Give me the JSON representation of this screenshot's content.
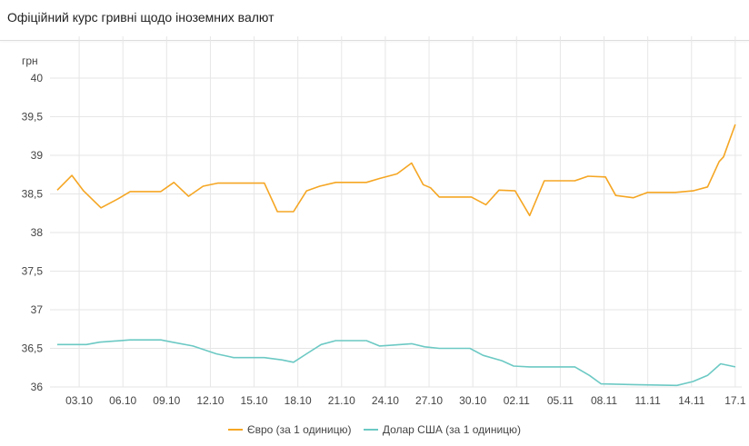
{
  "header": {
    "title": "Офіційний курс гривні щодо іноземних валют"
  },
  "chart_data": {
    "type": "line",
    "title": "Офіційний курс гривні щодо іноземних валют",
    "ylabel": "грн",
    "xlabel": "",
    "ylim": [
      36,
      40
    ],
    "yticks": [
      "40",
      "39,5",
      "39",
      "38,5",
      "38",
      "37,5",
      "37",
      "36,5",
      "36"
    ],
    "ytick_values": [
      40,
      39.5,
      39,
      38.5,
      38,
      37.5,
      37,
      36.5,
      36
    ],
    "x_unit": "days since 01.10",
    "xlim": [
      0,
      47.4
    ],
    "xticks": [
      "03.10",
      "06.10",
      "09.10",
      "12.10",
      "15.10",
      "18.10",
      "21.10",
      "24.10",
      "27.10",
      "30.10",
      "02.11",
      "05.11",
      "08.11",
      "11.11",
      "14.11",
      "17.1"
    ],
    "xtick_values": [
      2,
      5,
      8,
      11,
      14,
      17,
      20,
      23,
      26,
      29,
      32,
      35,
      38,
      41,
      44,
      47
    ],
    "grid": true,
    "legend": "bottom",
    "series": [
      {
        "name": "Євро (за 1 одиницю)",
        "color": "#f5a623",
        "points": [
          [
            0.5,
            38.55
          ],
          [
            1.5,
            38.74
          ],
          [
            2.3,
            38.54
          ],
          [
            3.5,
            38.32
          ],
          [
            4.7,
            38.44
          ],
          [
            5.5,
            38.53
          ],
          [
            7.6,
            38.53
          ],
          [
            8.5,
            38.65
          ],
          [
            9.5,
            38.47
          ],
          [
            10.5,
            38.6
          ],
          [
            11.5,
            38.64
          ],
          [
            14.7,
            38.64
          ],
          [
            15.6,
            38.27
          ],
          [
            16.7,
            38.27
          ],
          [
            17.6,
            38.54
          ],
          [
            18.5,
            38.6
          ],
          [
            19.6,
            38.65
          ],
          [
            21.7,
            38.65
          ],
          [
            22.6,
            38.7
          ],
          [
            23.4,
            38.74
          ],
          [
            23.8,
            38.76
          ],
          [
            24.8,
            38.9
          ],
          [
            25.6,
            38.62
          ],
          [
            26.1,
            38.58
          ],
          [
            26.7,
            38.46
          ],
          [
            28.9,
            38.46
          ],
          [
            29.9,
            38.36
          ],
          [
            30.8,
            38.55
          ],
          [
            31.9,
            38.54
          ],
          [
            32.9,
            38.22
          ],
          [
            33.9,
            38.67
          ],
          [
            36.0,
            38.67
          ],
          [
            36.9,
            38.73
          ],
          [
            38.1,
            38.72
          ],
          [
            38.8,
            38.48
          ],
          [
            40.0,
            38.45
          ],
          [
            41.0,
            38.52
          ],
          [
            42.9,
            38.52
          ],
          [
            44.1,
            38.54
          ],
          [
            45.1,
            38.59
          ],
          [
            45.9,
            38.92
          ],
          [
            46.2,
            38.98
          ],
          [
            47.0,
            39.4
          ]
        ]
      },
      {
        "name": "Долар США (за 1 одиницю)",
        "color": "#6cc9c4",
        "points": [
          [
            0.5,
            36.55
          ],
          [
            2.5,
            36.55
          ],
          [
            3.4,
            36.58
          ],
          [
            5.5,
            36.61
          ],
          [
            7.6,
            36.61
          ],
          [
            8.4,
            36.58
          ],
          [
            9.8,
            36.53
          ],
          [
            11.4,
            36.43
          ],
          [
            12.6,
            36.38
          ],
          [
            14.7,
            36.38
          ],
          [
            15.9,
            36.35
          ],
          [
            16.7,
            36.32
          ],
          [
            17.6,
            36.43
          ],
          [
            18.6,
            36.55
          ],
          [
            19.6,
            36.6
          ],
          [
            21.7,
            36.6
          ],
          [
            22.6,
            36.53
          ],
          [
            23.4,
            36.54
          ],
          [
            24.8,
            36.56
          ],
          [
            25.7,
            36.52
          ],
          [
            26.7,
            36.5
          ],
          [
            28.8,
            36.5
          ],
          [
            29.7,
            36.41
          ],
          [
            31.0,
            36.34
          ],
          [
            31.8,
            36.27
          ],
          [
            32.9,
            36.26
          ],
          [
            36.0,
            36.26
          ],
          [
            37.0,
            36.15
          ],
          [
            37.8,
            36.04
          ],
          [
            40.0,
            36.03
          ],
          [
            43.0,
            36.02
          ],
          [
            44.1,
            36.07
          ],
          [
            45.1,
            36.15
          ],
          [
            46.0,
            36.3
          ],
          [
            47.0,
            36.26
          ]
        ]
      }
    ]
  }
}
